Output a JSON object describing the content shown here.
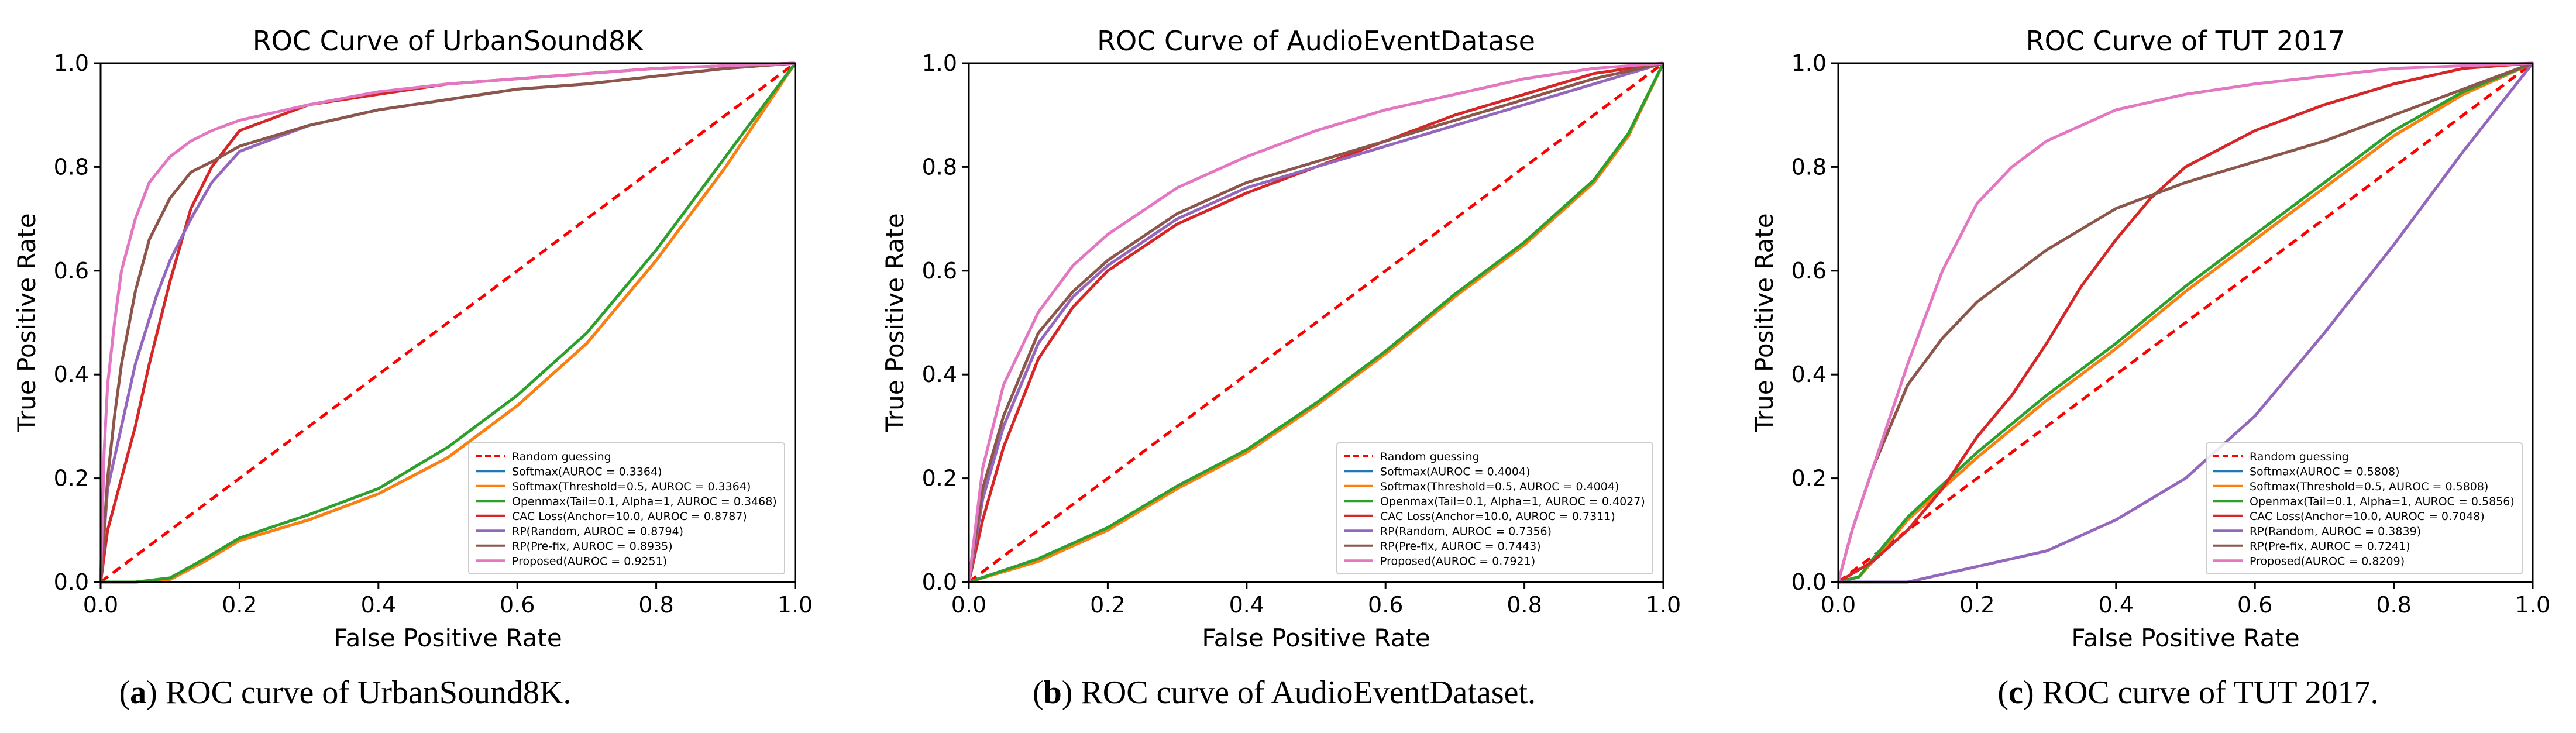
{
  "figure": {
    "captions": [
      {
        "letter": "a",
        "text": " ROC curve of UrbanSound8K."
      },
      {
        "letter": "b",
        "text": " ROC curve of AudioEventDataset."
      },
      {
        "letter": "c",
        "text": " ROC curve of TUT 2017."
      }
    ]
  },
  "legend_style": {
    "Random guessing": {
      "color": "#ff0000",
      "dash": true
    },
    "Softmax": {
      "color": "#1f77b4",
      "dash": false
    },
    "Softmax(Threshold)": {
      "color": "#ff7f0e",
      "dash": false
    },
    "Openmax": {
      "color": "#2ca02c",
      "dash": false
    },
    "CAC Loss": {
      "color": "#d62728",
      "dash": false
    },
    "RP(Random)": {
      "color": "#9467bd",
      "dash": false
    },
    "RP(Pre-fix)": {
      "color": "#8c564b",
      "dash": false
    },
    "Proposed": {
      "color": "#e377c2",
      "dash": false
    }
  },
  "chart_data": [
    {
      "type": "line",
      "title": "ROC Curve of UrbanSound8K",
      "xlabel": "False Positive Rate",
      "ylabel": "True Positive Rate",
      "xlim": [
        0,
        1
      ],
      "ylim": [
        0,
        1
      ],
      "xticks": [
        "0.0",
        "0.2",
        "0.4",
        "0.6",
        "0.8",
        "1.0"
      ],
      "yticks": [
        "0.0",
        "0.2",
        "0.4",
        "0.6",
        "0.8",
        "1.0"
      ],
      "legend_position": "bottom-right",
      "series": [
        {
          "key": "Random guessing",
          "name": "Random guessing",
          "x": [
            0,
            1
          ],
          "y": [
            0,
            1
          ]
        },
        {
          "key": "Softmax",
          "name": "Softmax(AUROC = 0.3364)",
          "x": [
            0,
            0.05,
            0.1,
            0.15,
            0.2,
            0.3,
            0.4,
            0.5,
            0.6,
            0.7,
            0.8,
            0.9,
            0.95,
            1.0
          ],
          "y": [
            0,
            0.0,
            0.005,
            0.04,
            0.08,
            0.12,
            0.17,
            0.24,
            0.34,
            0.46,
            0.62,
            0.8,
            0.9,
            1.0
          ]
        },
        {
          "key": "Softmax(Threshold)",
          "name": "Softmax(Threshold=0.5, AUROC = 0.3364)",
          "x": [
            0,
            0.05,
            0.1,
            0.15,
            0.2,
            0.3,
            0.4,
            0.5,
            0.6,
            0.7,
            0.8,
            0.9,
            0.95,
            1.0
          ],
          "y": [
            0,
            0.0,
            0.005,
            0.04,
            0.08,
            0.12,
            0.17,
            0.24,
            0.34,
            0.46,
            0.62,
            0.8,
            0.9,
            1.0
          ]
        },
        {
          "key": "Openmax",
          "name": "Openmax(Tail=0.1, Alpha=1, AUROC = 0.3468)",
          "x": [
            0,
            0.05,
            0.1,
            0.15,
            0.2,
            0.3,
            0.4,
            0.5,
            0.6,
            0.7,
            0.8,
            0.9,
            0.95,
            1.0
          ],
          "y": [
            0,
            0.0,
            0.008,
            0.045,
            0.085,
            0.13,
            0.18,
            0.26,
            0.36,
            0.48,
            0.64,
            0.82,
            0.91,
            1.0
          ]
        },
        {
          "key": "CAC Loss",
          "name": "CAC Loss(Anchor=10.0, AUROC = 0.8787)",
          "x": [
            0,
            0.01,
            0.03,
            0.05,
            0.07,
            0.1,
            0.13,
            0.16,
            0.2,
            0.3,
            0.4,
            0.5,
            0.6,
            0.7,
            0.8,
            0.9,
            1.0
          ],
          "y": [
            0,
            0.1,
            0.2,
            0.3,
            0.42,
            0.58,
            0.72,
            0.8,
            0.87,
            0.92,
            0.94,
            0.96,
            0.97,
            0.98,
            0.99,
            0.995,
            1.0
          ]
        },
        {
          "key": "RP(Random)",
          "name": "RP(Random, AUROC = 0.8794)",
          "x": [
            0,
            0.01,
            0.03,
            0.05,
            0.08,
            0.1,
            0.13,
            0.16,
            0.2,
            0.3,
            0.4,
            0.5,
            0.6,
            0.7,
            0.8,
            0.9,
            1.0
          ],
          "y": [
            0,
            0.18,
            0.3,
            0.42,
            0.55,
            0.62,
            0.7,
            0.77,
            0.83,
            0.88,
            0.91,
            0.93,
            0.95,
            0.96,
            0.975,
            0.99,
            1.0
          ]
        },
        {
          "key": "RP(Pre-fix)",
          "name": "RP(Pre-fix, AUROC = 0.8935)",
          "x": [
            0,
            0.01,
            0.02,
            0.03,
            0.05,
            0.07,
            0.1,
            0.13,
            0.16,
            0.2,
            0.3,
            0.4,
            0.5,
            0.6,
            0.7,
            0.8,
            0.9,
            1.0
          ],
          "y": [
            0,
            0.2,
            0.32,
            0.42,
            0.56,
            0.66,
            0.74,
            0.79,
            0.81,
            0.84,
            0.88,
            0.91,
            0.93,
            0.95,
            0.96,
            0.975,
            0.99,
            1.0
          ]
        },
        {
          "key": "Proposed",
          "name": "Proposed(AUROC = 0.9251)",
          "x": [
            0,
            0.005,
            0.01,
            0.02,
            0.03,
            0.05,
            0.07,
            0.1,
            0.13,
            0.16,
            0.2,
            0.3,
            0.4,
            0.5,
            0.6,
            0.7,
            0.8,
            0.9,
            1.0
          ],
          "y": [
            0,
            0.25,
            0.38,
            0.5,
            0.6,
            0.7,
            0.77,
            0.82,
            0.85,
            0.87,
            0.89,
            0.92,
            0.945,
            0.96,
            0.97,
            0.98,
            0.99,
            0.995,
            1.0
          ]
        }
      ]
    },
    {
      "type": "line",
      "title": "ROC Curve of AudioEventDatase",
      "xlabel": "False Positive Rate",
      "ylabel": "True Positive Rate",
      "xlim": [
        0,
        1
      ],
      "ylim": [
        0,
        1
      ],
      "xticks": [
        "0.0",
        "0.2",
        "0.4",
        "0.6",
        "0.8",
        "1.0"
      ],
      "yticks": [
        "0.0",
        "0.2",
        "0.4",
        "0.6",
        "0.8",
        "1.0"
      ],
      "legend_position": "bottom-right",
      "series": [
        {
          "key": "Random guessing",
          "name": "Random guessing",
          "x": [
            0,
            1
          ],
          "y": [
            0,
            1
          ]
        },
        {
          "key": "Softmax",
          "name": "Softmax(AUROC = 0.4004)",
          "x": [
            0,
            0.1,
            0.2,
            0.3,
            0.4,
            0.5,
            0.6,
            0.7,
            0.8,
            0.9,
            0.95,
            1.0
          ],
          "y": [
            0,
            0.04,
            0.1,
            0.18,
            0.25,
            0.34,
            0.44,
            0.55,
            0.65,
            0.77,
            0.86,
            1.0
          ]
        },
        {
          "key": "Softmax(Threshold)",
          "name": "Softmax(Threshold=0.5, AUROC = 0.4004)",
          "x": [
            0,
            0.1,
            0.2,
            0.3,
            0.4,
            0.5,
            0.6,
            0.7,
            0.8,
            0.9,
            0.95,
            1.0
          ],
          "y": [
            0,
            0.04,
            0.1,
            0.18,
            0.25,
            0.34,
            0.44,
            0.55,
            0.65,
            0.77,
            0.86,
            1.0
          ]
        },
        {
          "key": "Openmax",
          "name": "Openmax(Tail=0.1, Alpha=1, AUROC = 0.4027)",
          "x": [
            0,
            0.1,
            0.2,
            0.3,
            0.4,
            0.5,
            0.6,
            0.7,
            0.8,
            0.9,
            0.95,
            1.0
          ],
          "y": [
            0,
            0.045,
            0.105,
            0.185,
            0.255,
            0.345,
            0.445,
            0.555,
            0.655,
            0.775,
            0.865,
            1.0
          ]
        },
        {
          "key": "CAC Loss",
          "name": "CAC Loss(Anchor=10.0, AUROC = 0.7311)",
          "x": [
            0,
            0.02,
            0.05,
            0.1,
            0.15,
            0.2,
            0.3,
            0.4,
            0.5,
            0.6,
            0.7,
            0.8,
            0.9,
            1.0
          ],
          "y": [
            0,
            0.12,
            0.26,
            0.43,
            0.53,
            0.6,
            0.69,
            0.75,
            0.8,
            0.85,
            0.9,
            0.94,
            0.98,
            1.0
          ]
        },
        {
          "key": "RP(Random)",
          "name": "RP(Random, AUROC = 0.7356)",
          "x": [
            0,
            0.02,
            0.05,
            0.1,
            0.15,
            0.2,
            0.3,
            0.4,
            0.5,
            0.6,
            0.7,
            0.8,
            0.9,
            1.0
          ],
          "y": [
            0,
            0.16,
            0.3,
            0.46,
            0.55,
            0.61,
            0.7,
            0.76,
            0.8,
            0.84,
            0.88,
            0.92,
            0.96,
            1.0
          ]
        },
        {
          "key": "RP(Pre-fix)",
          "name": "RP(Pre-fix, AUROC = 0.7443)",
          "x": [
            0,
            0.02,
            0.05,
            0.1,
            0.15,
            0.2,
            0.3,
            0.4,
            0.5,
            0.6,
            0.7,
            0.8,
            0.9,
            1.0
          ],
          "y": [
            0,
            0.18,
            0.32,
            0.48,
            0.56,
            0.62,
            0.71,
            0.77,
            0.81,
            0.85,
            0.89,
            0.93,
            0.97,
            1.0
          ]
        },
        {
          "key": "Proposed",
          "name": "Proposed(AUROC = 0.7921)",
          "x": [
            0,
            0.02,
            0.05,
            0.1,
            0.15,
            0.2,
            0.3,
            0.4,
            0.5,
            0.6,
            0.7,
            0.8,
            0.9,
            1.0
          ],
          "y": [
            0,
            0.22,
            0.38,
            0.52,
            0.61,
            0.67,
            0.76,
            0.82,
            0.87,
            0.91,
            0.94,
            0.97,
            0.99,
            1.0
          ]
        }
      ]
    },
    {
      "type": "line",
      "title": "ROC Curve of TUT 2017",
      "xlabel": "False Positive Rate",
      "ylabel": "True Positive Rate",
      "xlim": [
        0,
        1
      ],
      "ylim": [
        0,
        1
      ],
      "xticks": [
        "0.0",
        "0.2",
        "0.4",
        "0.6",
        "0.8",
        "1.0"
      ],
      "yticks": [
        "0.0",
        "0.2",
        "0.4",
        "0.6",
        "0.8",
        "1.0"
      ],
      "legend_position": "bottom-right",
      "series": [
        {
          "key": "Random guessing",
          "name": "Random guessing",
          "x": [
            0,
            1
          ],
          "y": [
            0,
            1
          ]
        },
        {
          "key": "Softmax",
          "name": "Softmax(AUROC = 0.5808)",
          "x": [
            0,
            0.03,
            0.05,
            0.1,
            0.2,
            0.3,
            0.4,
            0.5,
            0.6,
            0.7,
            0.8,
            0.9,
            1.0
          ],
          "y": [
            0,
            0.01,
            0.04,
            0.12,
            0.24,
            0.35,
            0.45,
            0.56,
            0.66,
            0.76,
            0.86,
            0.94,
            1.0
          ]
        },
        {
          "key": "Softmax(Threshold)",
          "name": "Softmax(Threshold=0.5, AUROC = 0.5808)",
          "x": [
            0,
            0.03,
            0.05,
            0.1,
            0.2,
            0.3,
            0.4,
            0.5,
            0.6,
            0.7,
            0.8,
            0.9,
            1.0
          ],
          "y": [
            0,
            0.01,
            0.04,
            0.12,
            0.24,
            0.35,
            0.45,
            0.56,
            0.66,
            0.76,
            0.86,
            0.94,
            1.0
          ]
        },
        {
          "key": "Openmax",
          "name": "Openmax(Tail=0.1, Alpha=1, AUROC = 0.5856)",
          "x": [
            0,
            0.03,
            0.05,
            0.1,
            0.2,
            0.3,
            0.4,
            0.5,
            0.6,
            0.7,
            0.8,
            0.9,
            1.0
          ],
          "y": [
            0,
            0.01,
            0.045,
            0.125,
            0.25,
            0.36,
            0.46,
            0.57,
            0.67,
            0.77,
            0.87,
            0.945,
            1.0
          ]
        },
        {
          "key": "CAC Loss",
          "name": "CAC Loss(Anchor=10.0, AUROC = 0.7048)",
          "x": [
            0,
            0.05,
            0.1,
            0.15,
            0.2,
            0.25,
            0.3,
            0.35,
            0.4,
            0.45,
            0.5,
            0.6,
            0.7,
            0.8,
            0.9,
            1.0
          ],
          "y": [
            0,
            0.04,
            0.1,
            0.18,
            0.28,
            0.36,
            0.46,
            0.57,
            0.66,
            0.74,
            0.8,
            0.87,
            0.92,
            0.96,
            0.99,
            1.0
          ]
        },
        {
          "key": "RP(Random)",
          "name": "RP(Random, AUROC = 0.3839)",
          "x": [
            0,
            0.1,
            0.2,
            0.3,
            0.4,
            0.5,
            0.6,
            0.7,
            0.8,
            0.9,
            1.0
          ],
          "y": [
            0,
            0.0,
            0.03,
            0.06,
            0.12,
            0.2,
            0.32,
            0.48,
            0.65,
            0.83,
            1.0
          ]
        },
        {
          "key": "RP(Pre-fix)",
          "name": "RP(Pre-fix, AUROC = 0.7241)",
          "x": [
            0,
            0.02,
            0.05,
            0.1,
            0.15,
            0.2,
            0.3,
            0.4,
            0.5,
            0.6,
            0.7,
            0.8,
            0.9,
            1.0
          ],
          "y": [
            0,
            0.1,
            0.22,
            0.38,
            0.47,
            0.54,
            0.64,
            0.72,
            0.77,
            0.81,
            0.85,
            0.9,
            0.95,
            1.0
          ]
        },
        {
          "key": "Proposed",
          "name": "Proposed(AUROC = 0.8209)",
          "x": [
            0,
            0.02,
            0.05,
            0.1,
            0.15,
            0.2,
            0.25,
            0.3,
            0.4,
            0.5,
            0.6,
            0.7,
            0.8,
            0.9,
            1.0
          ],
          "y": [
            0,
            0.1,
            0.22,
            0.42,
            0.6,
            0.73,
            0.8,
            0.85,
            0.91,
            0.94,
            0.96,
            0.975,
            0.99,
            0.995,
            1.0
          ]
        }
      ]
    }
  ]
}
